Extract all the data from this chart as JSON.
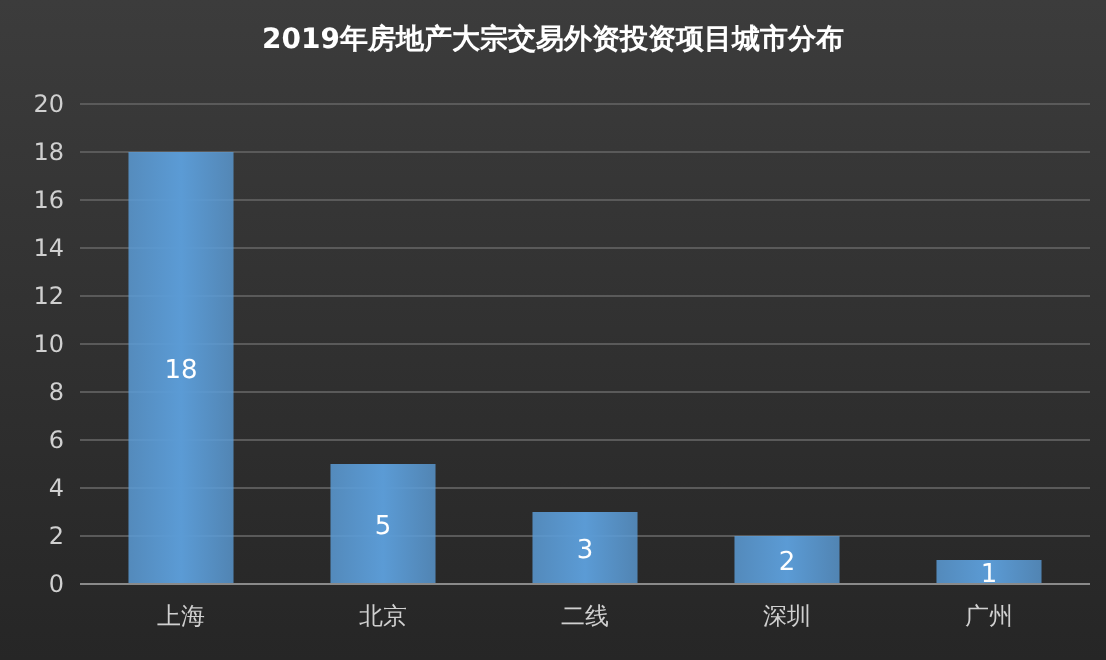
{
  "chart_data": {
    "type": "bar",
    "title": "2019年房地产大宗交易外资投资项目城市分布",
    "categories": [
      "上海",
      "北京",
      "二线",
      "深圳",
      "广州"
    ],
    "values": [
      18,
      5,
      3,
      2,
      1
    ],
    "color": "#5b9bd5",
    "ylim": [
      0,
      20
    ],
    "yticks": [
      0,
      2,
      4,
      6,
      8,
      10,
      12,
      14,
      16,
      18,
      20
    ],
    "grid": "y",
    "data_labels": true
  }
}
